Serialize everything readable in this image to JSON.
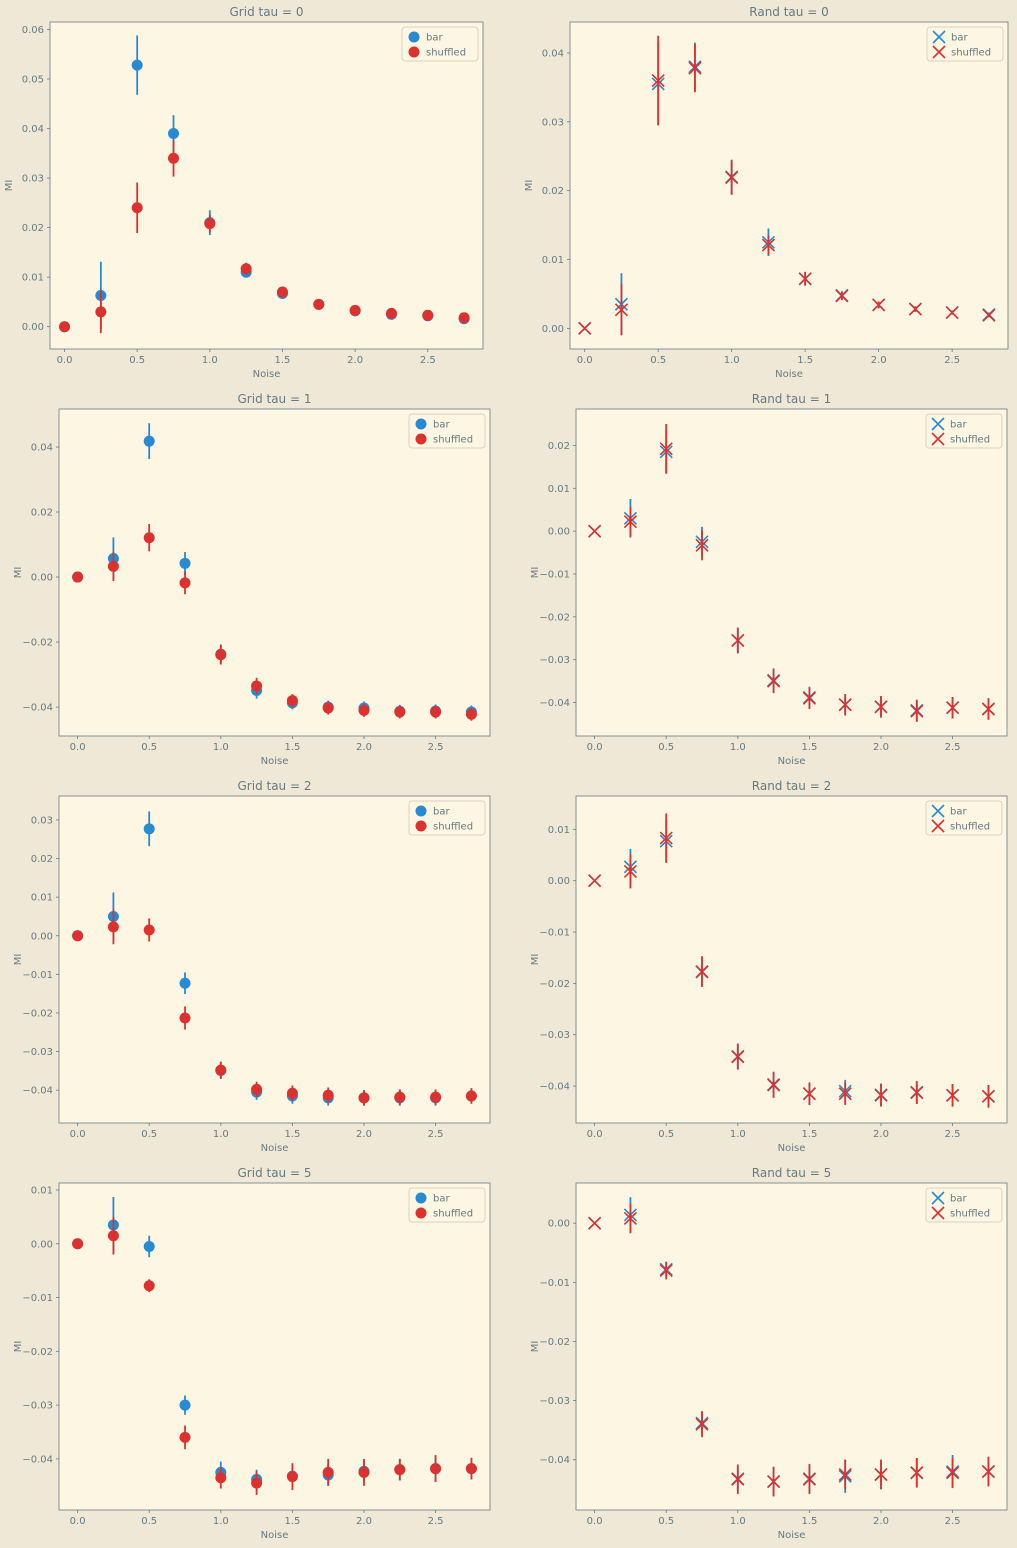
{
  "colors": {
    "page_bg": "#efe8d6",
    "plot_bg": "#fdf6e3",
    "axis_text": "#657b83",
    "bar": "#268bd2",
    "shuffled": "#dc322f"
  },
  "chart_data": [
    {
      "id": "grid0",
      "type": "scatter",
      "marker": "circle",
      "title": "Grid tau = 0",
      "xlabel": "Noise",
      "ylabel": "MI",
      "xlim": [
        -0.1,
        2.88
      ],
      "ylim": [
        -0.0045,
        0.0615
      ],
      "xticks": [
        0,
        0.5,
        1,
        1.5,
        2,
        2.5
      ],
      "xtick_labels": [
        "0.0",
        "0.5",
        "1.0",
        "1.5",
        "2.0",
        "2.5"
      ],
      "yticks": [
        0,
        0.01,
        0.02,
        0.03,
        0.04,
        0.05,
        0.06
      ],
      "ytick_labels": [
        "0.00",
        "0.01",
        "0.02",
        "0.03",
        "0.04",
        "0.05",
        "0.06"
      ],
      "legend": "top-right",
      "x": [
        0,
        0.25,
        0.5,
        0.75,
        1.0,
        1.25,
        1.5,
        1.75,
        2.0,
        2.25,
        2.5,
        2.75
      ],
      "series": [
        {
          "name": "bar",
          "values": [
            0.0,
            0.0063,
            0.0528,
            0.039,
            0.021,
            0.011,
            0.0067,
            0.0045,
            0.0032,
            0.0025,
            0.0022,
            0.0016
          ],
          "errors": [
            0.0003,
            0.0068,
            0.006,
            0.0037,
            0.0025,
            0.001,
            0.0007,
            0.0004,
            0.0003,
            0.0003,
            0.0003,
            0.0003
          ]
        },
        {
          "name": "shuffled",
          "values": [
            0.0,
            0.003,
            0.024,
            0.034,
            0.0208,
            0.0117,
            0.007,
            0.0045,
            0.0033,
            0.0027,
            0.0023,
            0.0018
          ],
          "errors": [
            0.0003,
            0.0043,
            0.0051,
            0.0037,
            0.0018,
            0.0012,
            0.0008,
            0.0004,
            0.0003,
            0.0003,
            0.0003,
            0.0003
          ]
        }
      ]
    },
    {
      "id": "rand0",
      "type": "scatter",
      "marker": "x",
      "title": "Rand tau = 0",
      "xlabel": "Noise",
      "ylabel": "MI",
      "xlim": [
        -0.1,
        2.88
      ],
      "ylim": [
        -0.003,
        0.0445
      ],
      "xticks": [
        0,
        0.5,
        1,
        1.5,
        2,
        2.5
      ],
      "xtick_labels": [
        "0.0",
        "0.5",
        "1.0",
        "1.5",
        "2.0",
        "2.5"
      ],
      "yticks": [
        0,
        0.01,
        0.02,
        0.03,
        0.04
      ],
      "ytick_labels": [
        "0.00",
        "0.01",
        "0.02",
        "0.03",
        "0.04"
      ],
      "legend": "top-right",
      "x": [
        0,
        0.25,
        0.5,
        0.75,
        1.0,
        1.25,
        1.5,
        1.75,
        2.0,
        2.25,
        2.5,
        2.75
      ],
      "series": [
        {
          "name": "bar",
          "values": [
            0.0,
            0.0035,
            0.0355,
            0.038,
            0.022,
            0.0125,
            0.0072,
            0.0048,
            0.0034,
            0.0028,
            0.0023,
            0.002
          ],
          "errors": [
            0.0002,
            0.0045,
            0.006,
            0.0035,
            0.0025,
            0.002,
            0.001,
            0.0006,
            0.0005,
            0.0004,
            0.0003,
            0.0003
          ]
        },
        {
          "name": "shuffled",
          "values": [
            0.0,
            0.0027,
            0.036,
            0.0378,
            0.0219,
            0.0121,
            0.0072,
            0.0047,
            0.0034,
            0.0028,
            0.0023,
            0.0019
          ],
          "errors": [
            0.0002,
            0.0037,
            0.0065,
            0.0035,
            0.0025,
            0.0014,
            0.001,
            0.0006,
            0.0005,
            0.0004,
            0.0003,
            0.0003
          ]
        }
      ]
    },
    {
      "id": "grid1",
      "type": "scatter",
      "marker": "circle",
      "title": "Grid tau = 1",
      "xlabel": "Noise",
      "ylabel": "MI",
      "xlim": [
        -0.13,
        2.88
      ],
      "ylim": [
        -0.0489,
        0.0517
      ],
      "xticks": [
        0,
        0.5,
        1,
        1.5,
        2,
        2.5
      ],
      "xtick_labels": [
        "0.0",
        "0.5",
        "1.0",
        "1.5",
        "2.0",
        "2.5"
      ],
      "yticks": [
        -0.04,
        -0.02,
        0,
        0.02,
        0.04
      ],
      "ytick_labels": [
        "−0.04",
        "−0.02",
        "0.00",
        "0.02",
        "0.04"
      ],
      "legend": "top-right",
      "x": [
        0,
        0.25,
        0.5,
        0.75,
        1.0,
        1.25,
        1.5,
        1.75,
        2.0,
        2.25,
        2.5,
        2.75
      ],
      "series": [
        {
          "name": "bar",
          "values": [
            0.0,
            0.0057,
            0.0418,
            0.0042,
            -0.0237,
            -0.0349,
            -0.0387,
            -0.04,
            -0.0403,
            -0.0413,
            -0.0412,
            -0.0415
          ],
          "errors": [
            0.0005,
            0.0065,
            0.0055,
            0.0035,
            0.003,
            0.0025,
            0.002,
            0.002,
            0.002,
            0.002,
            0.002,
            0.002
          ]
        },
        {
          "name": "shuffled",
          "values": [
            0.0,
            0.0033,
            0.0121,
            -0.0018,
            -0.0239,
            -0.0335,
            -0.038,
            -0.0403,
            -0.041,
            -0.0415,
            -0.0415,
            -0.0422
          ],
          "errors": [
            0.0005,
            0.0045,
            0.0042,
            0.0035,
            0.003,
            0.0025,
            0.002,
            0.002,
            0.002,
            0.002,
            0.002,
            0.002
          ]
        }
      ]
    },
    {
      "id": "rand1",
      "type": "scatter",
      "marker": "x",
      "title": "Rand tau = 1",
      "xlabel": "Noise",
      "ylabel": "MI",
      "xlim": [
        -0.13,
        2.88
      ],
      "ylim": [
        -0.0478,
        0.0285
      ],
      "xticks": [
        0,
        0.5,
        1,
        1.5,
        2,
        2.5
      ],
      "xtick_labels": [
        "0.0",
        "0.5",
        "1.0",
        "1.5",
        "2.0",
        "2.5"
      ],
      "yticks": [
        -0.04,
        -0.03,
        -0.02,
        -0.01,
        0,
        0.01,
        0.02
      ],
      "ytick_labels": [
        "−0.04",
        "−0.03",
        "−0.02",
        "−0.01",
        "0.00",
        "0.01",
        "0.02"
      ],
      "legend": "top-right",
      "x": [
        0,
        0.25,
        0.5,
        0.75,
        1.0,
        1.25,
        1.5,
        1.75,
        2.0,
        2.25,
        2.5,
        2.75
      ],
      "series": [
        {
          "name": "bar",
          "values": [
            0.0,
            0.003,
            0.0185,
            -0.0025,
            -0.0255,
            -0.0348,
            -0.0388,
            -0.0405,
            -0.041,
            -0.0418,
            -0.0412,
            -0.0415
          ],
          "errors": [
            0.0003,
            0.0045,
            0.005,
            0.0035,
            0.003,
            0.0028,
            0.0025,
            0.0025,
            0.0025,
            0.0025,
            0.0025,
            0.0025
          ]
        },
        {
          "name": "shuffled",
          "values": [
            0.0,
            0.0022,
            0.0192,
            -0.0033,
            -0.0255,
            -0.035,
            -0.039,
            -0.0405,
            -0.041,
            -0.042,
            -0.0412,
            -0.0415
          ],
          "errors": [
            0.0003,
            0.0035,
            0.0058,
            0.0035,
            0.003,
            0.0028,
            0.0025,
            0.0025,
            0.0025,
            0.0025,
            0.0025,
            0.0025
          ]
        }
      ]
    },
    {
      "id": "grid2",
      "type": "scatter",
      "marker": "circle",
      "title": "Grid tau = 2",
      "xlabel": "Noise",
      "ylabel": "MI",
      "xlim": [
        -0.13,
        2.88
      ],
      "ylim": [
        -0.0485,
        0.0362
      ],
      "xticks": [
        0,
        0.5,
        1,
        1.5,
        2,
        2.5
      ],
      "xtick_labels": [
        "0.0",
        "0.5",
        "1.0",
        "1.5",
        "2.0",
        "2.5"
      ],
      "yticks": [
        -0.04,
        -0.03,
        -0.02,
        -0.01,
        0,
        0.01,
        0.02,
        0.03
      ],
      "ytick_labels": [
        "−0.04",
        "−0.03",
        "−0.02",
        "−0.01",
        "0.00",
        "0.01",
        "0.02",
        "0.03"
      ],
      "legend": "top-right",
      "x": [
        0,
        0.25,
        0.5,
        0.75,
        1.0,
        1.25,
        1.5,
        1.75,
        2.0,
        2.25,
        2.5,
        2.75
      ],
      "series": [
        {
          "name": "bar",
          "values": [
            0.0,
            0.005,
            0.0277,
            -0.0123,
            -0.0349,
            -0.0405,
            -0.0415,
            -0.042,
            -0.042,
            -0.042,
            -0.042,
            -0.0415
          ],
          "errors": [
            0.0003,
            0.0062,
            0.0045,
            0.0028,
            0.0022,
            0.002,
            0.002,
            0.002,
            0.002,
            0.002,
            0.002,
            0.002
          ]
        },
        {
          "name": "shuffled",
          "values": [
            0.0,
            0.0023,
            0.0015,
            -0.0213,
            -0.0348,
            -0.0398,
            -0.0408,
            -0.0413,
            -0.042,
            -0.0418,
            -0.0418,
            -0.0415
          ],
          "errors": [
            0.0003,
            0.0045,
            0.003,
            0.003,
            0.0022,
            0.002,
            0.002,
            0.002,
            0.002,
            0.002,
            0.002,
            0.002
          ]
        }
      ]
    },
    {
      "id": "rand2",
      "type": "scatter",
      "marker": "x",
      "title": "Rand tau = 2",
      "xlabel": "Noise",
      "ylabel": "MI",
      "xlim": [
        -0.13,
        2.88
      ],
      "ylim": [
        -0.0472,
        0.0165
      ],
      "xticks": [
        0,
        0.5,
        1,
        1.5,
        2,
        2.5
      ],
      "xtick_labels": [
        "0.0",
        "0.5",
        "1.0",
        "1.5",
        "2.0",
        "2.5"
      ],
      "yticks": [
        -0.04,
        -0.03,
        -0.02,
        -0.01,
        0,
        0.01
      ],
      "ytick_labels": [
        "−0.04",
        "−0.03",
        "−0.02",
        "−0.01",
        "0.00",
        "0.01"
      ],
      "legend": "top-right",
      "x": [
        0,
        0.25,
        0.5,
        0.75,
        1.0,
        1.25,
        1.5,
        1.75,
        2.0,
        2.25,
        2.5,
        2.75
      ],
      "series": [
        {
          "name": "bar",
          "values": [
            0.0,
            0.0027,
            0.0077,
            -0.0178,
            -0.0342,
            -0.0397,
            -0.0415,
            -0.041,
            -0.0417,
            -0.0412,
            -0.0418,
            -0.042
          ],
          "errors": [
            0.0002,
            0.0035,
            0.0042,
            0.0028,
            0.0025,
            0.0025,
            0.0022,
            0.0022,
            0.0022,
            0.0022,
            0.0022,
            0.0022
          ]
        },
        {
          "name": "shuffled",
          "values": [
            0.0,
            0.0018,
            0.0083,
            -0.0177,
            -0.0343,
            -0.0398,
            -0.0415,
            -0.0415,
            -0.0418,
            -0.0413,
            -0.0418,
            -0.042
          ],
          "errors": [
            0.0002,
            0.0033,
            0.0048,
            0.003,
            0.0025,
            0.0025,
            0.0022,
            0.0022,
            0.0022,
            0.0022,
            0.0022,
            0.0022
          ]
        }
      ]
    },
    {
      "id": "grid5",
      "type": "scatter",
      "marker": "circle",
      "title": "Grid tau = 5",
      "xlabel": "Noise",
      "ylabel": "MI",
      "xlim": [
        -0.13,
        2.88
      ],
      "ylim": [
        -0.0495,
        0.0113
      ],
      "xticks": [
        0,
        0.5,
        1,
        1.5,
        2,
        2.5
      ],
      "xtick_labels": [
        "0.0",
        "0.5",
        "1.0",
        "1.5",
        "2.0",
        "2.5"
      ],
      "yticks": [
        -0.04,
        -0.03,
        -0.02,
        -0.01,
        0,
        0.01
      ],
      "ytick_labels": [
        "−0.04",
        "−0.03",
        "−0.02",
        "−0.01",
        "0.00",
        "0.01"
      ],
      "legend": "top-right",
      "x": [
        0,
        0.25,
        0.5,
        0.75,
        1.0,
        1.25,
        1.5,
        1.75,
        2.0,
        2.25,
        2.5,
        2.75
      ],
      "series": [
        {
          "name": "bar",
          "values": [
            0.0,
            0.0035,
            -0.0005,
            -0.03,
            -0.0425,
            -0.0438,
            -0.0432,
            -0.043,
            -0.0423,
            -0.042,
            -0.0418,
            -0.0418
          ],
          "errors": [
            0.0003,
            0.0052,
            0.002,
            0.0018,
            0.002,
            0.0018,
            0.002,
            0.002,
            0.002,
            0.002,
            0.0025,
            0.002
          ]
        },
        {
          "name": "shuffled",
          "values": [
            0.0,
            0.0015,
            -0.0078,
            -0.036,
            -0.0435,
            -0.0445,
            -0.0433,
            -0.0425,
            -0.0425,
            -0.042,
            -0.0418,
            -0.0418
          ],
          "errors": [
            0.0003,
            0.0035,
            0.0012,
            0.0022,
            0.002,
            0.0022,
            0.0025,
            0.0025,
            0.0025,
            0.002,
            0.0025,
            0.002
          ]
        }
      ]
    },
    {
      "id": "rand5",
      "type": "scatter",
      "marker": "x",
      "title": "Rand tau = 5",
      "xlabel": "Noise",
      "ylabel": "MI",
      "xlim": [
        -0.13,
        2.88
      ],
      "ylim": [
        -0.0485,
        0.0068
      ],
      "xticks": [
        0,
        0.5,
        1,
        1.5,
        2,
        2.5
      ],
      "xtick_labels": [
        "0.0",
        "0.5",
        "1.0",
        "1.5",
        "2.0",
        "2.5"
      ],
      "yticks": [
        -0.04,
        -0.03,
        -0.02,
        -0.01,
        0
      ],
      "ytick_labels": [
        "−0.04",
        "−0.03",
        "−0.02",
        "−0.01",
        "0.00"
      ],
      "legend": "top-right",
      "x": [
        0,
        0.25,
        0.5,
        0.75,
        1.0,
        1.25,
        1.5,
        1.75,
        2.0,
        2.25,
        2.5,
        2.75
      ],
      "series": [
        {
          "name": "bar",
          "values": [
            0.0,
            0.0014,
            -0.0078,
            -0.0338,
            -0.0432,
            -0.0437,
            -0.0432,
            -0.0428,
            -0.0425,
            -0.0422,
            -0.042,
            -0.042
          ],
          "errors": [
            0.0002,
            0.003,
            0.0012,
            0.002,
            0.002,
            0.0025,
            0.0025,
            0.0028,
            0.0025,
            0.0025,
            0.0028,
            0.0025
          ]
        },
        {
          "name": "shuffled",
          "values": [
            0.0,
            0.0008,
            -0.008,
            -0.034,
            -0.0433,
            -0.0437,
            -0.0433,
            -0.0425,
            -0.0425,
            -0.0422,
            -0.0422,
            -0.042
          ],
          "errors": [
            0.0002,
            0.0025,
            0.0015,
            0.0022,
            0.0025,
            0.0025,
            0.0025,
            0.0025,
            0.0025,
            0.0025,
            0.0025,
            0.0025
          ]
        }
      ]
    }
  ]
}
